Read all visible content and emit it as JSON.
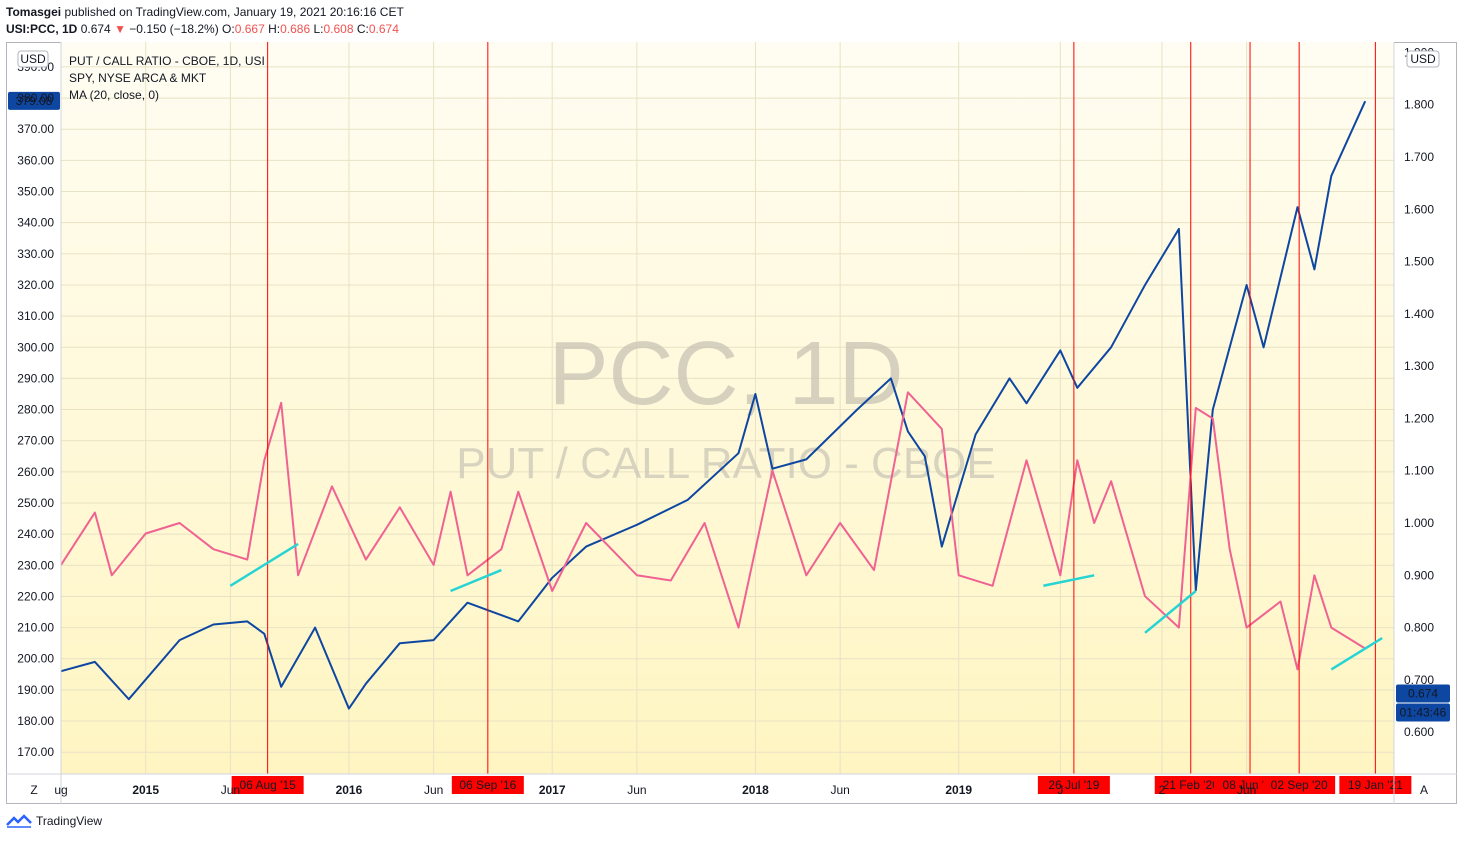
{
  "header": {
    "author": "Tomasgei",
    "published": "published on TradingView.com, January 19, 2021 20:16:16 CET",
    "symbol": "USI:PCC, 1D",
    "last": "0.674",
    "arrow": "▼",
    "change": "−0.150 (−18.2%)",
    "o_label": "O:",
    "o_val": "0.667",
    "h_label": "H:",
    "h_val": "0.686",
    "l_label": "L:",
    "l_val": "0.608",
    "c_label": "C:",
    "c_val": "0.674"
  },
  "legend": {
    "line1": "PUT / CALL RATIO - CBOE, 1D, USI",
    "line2": "SPY, NYSE ARCA & MKT",
    "line3": "MA (20, close, 0)"
  },
  "watermark": {
    "big": "PCC, 1D",
    "small": "PUT / CALL RATIO - CBOE"
  },
  "footer": {
    "brand": "TradingView"
  },
  "colors": {
    "spy": "#0d47a1",
    "pcc": "#f06292",
    "marker": "#ff0000",
    "trend": "#26d4d4",
    "label_bg": "#0d47a1"
  },
  "chart_data": {
    "type": "line",
    "x_axis_labels": [
      "ug",
      "2015",
      "Jun",
      "2016",
      "Jun",
      "2017",
      "Jun",
      "2018",
      "Jun",
      "2019",
      "J",
      "2",
      "Jun"
    ],
    "left_axis": {
      "currency": "USD",
      "ticks": [
        "390.00",
        "380.00",
        "370.00",
        "360.00",
        "350.00",
        "340.00",
        "330.00",
        "320.00",
        "310.00",
        "300.00",
        "290.00",
        "280.00",
        "270.00",
        "260.00",
        "250.00",
        "240.00",
        "230.00",
        "220.00",
        "210.00",
        "200.00",
        "190.00",
        "180.00",
        "170.00"
      ],
      "ylim": [
        163,
        398
      ]
    },
    "right_axis": {
      "currency": "USD",
      "ticks": [
        "1.900",
        "1.800",
        "1.700",
        "1.600",
        "1.500",
        "1.400",
        "1.300",
        "1.200",
        "1.100",
        "1.000",
        "0.900",
        "0.800",
        "0.700",
        "0.600"
      ],
      "ylim": [
        0.52,
        1.92
      ]
    },
    "last_price_label": "379.08",
    "last_pcc_label": "0.674",
    "countdown_label": "01:43:46",
    "event_markers": [
      "06 Aug '15",
      "06 Sep '16",
      "26 Jul '19",
      "21 Feb '20",
      "08 Jun '20",
      "02 Sep '20",
      "19 Jan '21"
    ],
    "series": [
      {
        "name": "SPY, NYSE ARCA & MKT",
        "axis": "left",
        "x": [
          "2014-08",
          "2014-10",
          "2014-12",
          "2015-03",
          "2015-05",
          "2015-07",
          "2015-08",
          "2015-09",
          "2015-11",
          "2016-01",
          "2016-02",
          "2016-04",
          "2016-06",
          "2016-08",
          "2016-09",
          "2016-11",
          "2017-01",
          "2017-03",
          "2017-06",
          "2017-09",
          "2017-12",
          "2018-01",
          "2018-02",
          "2018-04",
          "2018-07",
          "2018-09",
          "2018-10",
          "2018-11",
          "2018-12",
          "2019-02",
          "2019-04",
          "2019-05",
          "2019-07",
          "2019-08",
          "2019-10",
          "2019-12",
          "2020-02",
          "2020-03",
          "2020-04",
          "2020-06",
          "2020-07",
          "2020-09",
          "2020-10",
          "2020-11",
          "2021-01"
        ],
        "values": [
          196,
          199,
          187,
          206,
          211,
          212,
          208,
          191,
          210,
          184,
          192,
          205,
          206,
          218,
          216,
          212,
          226,
          236,
          243,
          251,
          266,
          285,
          261,
          264,
          280,
          290,
          273,
          265,
          236,
          272,
          290,
          282,
          299,
          287,
          300,
          320,
          338,
          222,
          280,
          320,
          300,
          345,
          325,
          355,
          379
        ]
      },
      {
        "name": "MA (20, close, 0)",
        "axis": "right",
        "x": [
          "2014-08",
          "2014-10",
          "2014-11",
          "2015-01",
          "2015-03",
          "2015-05",
          "2015-07",
          "2015-08",
          "2015-09",
          "2015-10",
          "2015-12",
          "2016-02",
          "2016-04",
          "2016-06",
          "2016-07",
          "2016-08",
          "2016-10",
          "2016-11",
          "2017-01",
          "2017-03",
          "2017-06",
          "2017-08",
          "2017-10",
          "2017-12",
          "2018-02",
          "2018-04",
          "2018-06",
          "2018-08",
          "2018-10",
          "2018-12",
          "2019-01",
          "2019-03",
          "2019-05",
          "2019-07",
          "2019-08",
          "2019-09",
          "2019-10",
          "2019-12",
          "2020-02",
          "2020-03",
          "2020-04",
          "2020-05",
          "2020-06",
          "2020-08",
          "2020-09",
          "2020-10",
          "2020-11",
          "2021-01"
        ],
        "values": [
          0.92,
          1.02,
          0.9,
          0.98,
          1.0,
          0.95,
          0.93,
          1.12,
          1.23,
          0.9,
          1.07,
          0.93,
          1.03,
          0.92,
          1.06,
          0.9,
          0.95,
          1.06,
          0.87,
          1.0,
          0.9,
          0.89,
          1.0,
          0.8,
          1.1,
          0.9,
          1.0,
          0.91,
          1.25,
          1.18,
          0.9,
          0.88,
          1.12,
          0.9,
          1.12,
          1.0,
          1.08,
          0.86,
          0.8,
          1.22,
          1.2,
          0.95,
          0.8,
          0.85,
          0.72,
          0.9,
          0.8,
          0.76
        ]
      }
    ]
  }
}
